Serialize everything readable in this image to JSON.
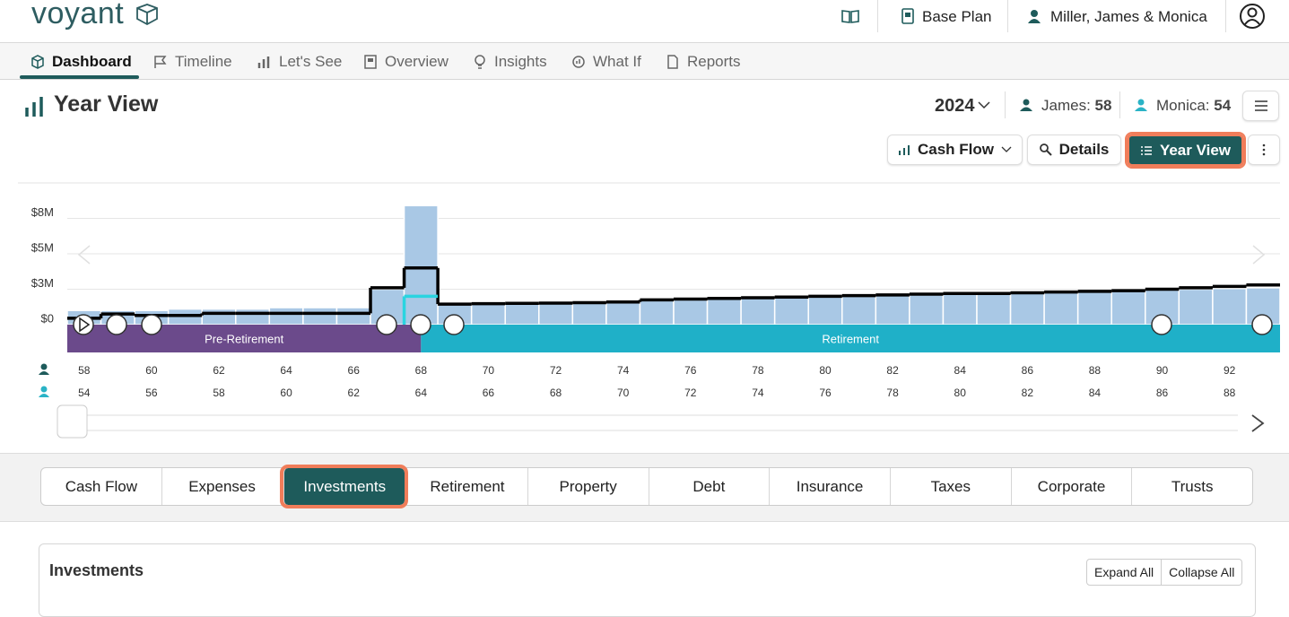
{
  "header": {
    "logo": "voyant",
    "plan": "Base Plan",
    "client": "Miller, James & Monica"
  },
  "nav": [
    "Dashboard",
    "Timeline",
    "Let's See",
    "Overview",
    "Insights",
    "What If",
    "Reports"
  ],
  "view": {
    "title": "Year View",
    "year": 2024,
    "people": [
      {
        "name": "James:",
        "age": 58
      },
      {
        "name": "Monica:",
        "age": 54
      }
    ]
  },
  "toolbar": [
    "Cash Flow",
    "Details",
    "Year View"
  ],
  "chart_data": {
    "type": "bar",
    "categories": [
      58,
      null,
      60,
      null,
      62,
      null,
      64,
      null,
      66,
      null,
      68,
      null,
      70,
      null,
      72,
      null,
      74,
      null,
      76,
      null,
      78,
      null,
      80,
      null,
      82,
      null,
      84,
      null,
      86,
      null,
      88,
      null,
      90,
      null,
      92,
      null
    ],
    "categories_2": [
      54,
      null,
      56,
      null,
      58,
      null,
      60,
      null,
      62,
      null,
      64,
      null,
      66,
      null,
      68,
      null,
      70,
      null,
      72,
      null,
      74,
      null,
      76,
      null,
      78,
      null,
      80,
      null,
      82,
      null,
      84,
      null,
      86,
      null,
      88,
      null
    ],
    "series": [
      {
        "type": "bar",
        "color": "#a9c8e5",
        "values": [
          1000000,
          1000000,
          1000000,
          1100000,
          1100000,
          1100000,
          1200000,
          1200000,
          1200000,
          2500000,
          8400000,
          1400000,
          1450000,
          1500000,
          1550000,
          1600000,
          1650000,
          1700000,
          1750000,
          1800000,
          1850000,
          1900000,
          1950000,
          2000000,
          2050000,
          2100000,
          2150000,
          2200000,
          2250000,
          2300000,
          2350000,
          2400000,
          2450000,
          2500000,
          2550000,
          2600000
        ]
      },
      {
        "type": "step",
        "color": "#000000",
        "values": [
          450000,
          750000,
          650000,
          650000,
          800000,
          800000,
          800000,
          800000,
          800000,
          2600000,
          4000000,
          1450000,
          1480000,
          1500000,
          1520000,
          1550000,
          1600000,
          1750000,
          1800000,
          1850000,
          1900000,
          1950000,
          2000000,
          2050000,
          2100000,
          2150000,
          2200000,
          2200000,
          2250000,
          2300000,
          2350000,
          2400000,
          2500000,
          2600000,
          2700000,
          2800000
        ]
      },
      {
        "type": "step",
        "color": "#2ad4e0",
        "values": [
          null,
          null,
          null,
          null,
          null,
          null,
          null,
          null,
          null,
          null,
          2000000,
          null,
          null,
          null,
          null,
          null,
          null,
          null,
          null,
          null,
          null,
          null,
          null,
          null,
          null,
          null,
          null,
          null,
          null,
          null,
          null,
          null,
          null,
          null,
          null,
          null
        ]
      }
    ],
    "phases": [
      "Pre-Retirement",
      "Retirement"
    ],
    "ylim": [
      0,
      10000000
    ],
    "yticks": [
      {
        "value": 0,
        "label": "$0"
      },
      {
        "value": 2500000,
        "label": "$3M"
      },
      {
        "value": 5000000,
        "label": "$5M"
      },
      {
        "value": 7500000,
        "label": "$8M"
      }
    ],
    "grid": true
  },
  "tabs": [
    "Cash Flow",
    "Expenses",
    "Investments",
    "Retirement",
    "Property",
    "Debt",
    "Insurance",
    "Taxes",
    "Corporate",
    "Trusts"
  ],
  "section": {
    "title": "Investments",
    "buttons": [
      "Expand All",
      "Collapse All"
    ]
  }
}
